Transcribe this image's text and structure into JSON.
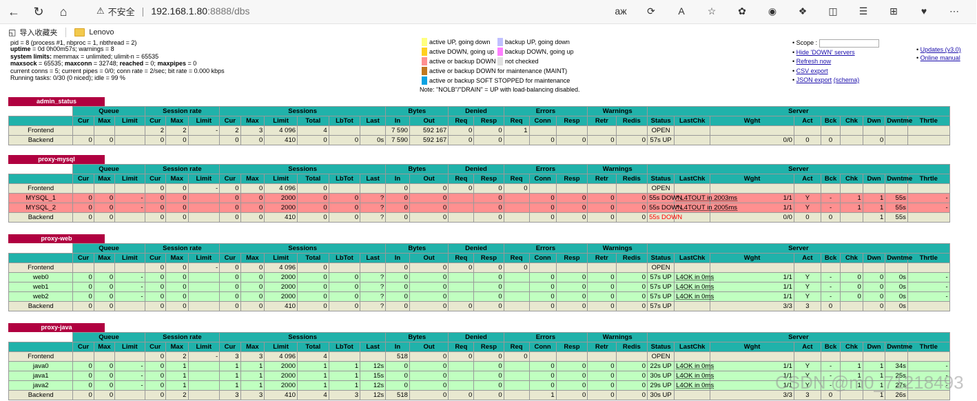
{
  "browser": {
    "insecure_label": "不安全",
    "url_host": "192.168.1.80",
    "url_path": ":8888/dbs",
    "bookmarks": [
      {
        "label": "导入收藏夹"
      },
      {
        "label": "Lenovo"
      }
    ]
  },
  "info": {
    "line0": "pid = 8 (process #1, nbproc = 1, nbthread = 2)",
    "uptime_label": "uptime",
    "uptime_value": " = 0d 0h00m57s; warnings = 8",
    "syslim_label": "system limits:",
    "syslim_value": " memmax = unlimited; ulimit-n = 65535",
    "maxsock_label": "maxsock",
    "maxsock_value": " = 65535; ",
    "maxconn_label": "maxconn",
    "maxconn_value": " = 32748; ",
    "reached_label": "reached",
    "reached_value": " = 0; ",
    "maxpipes_label": "maxpipes",
    "maxpipes_value": " = 0",
    "line4": "current conns = 5; current pipes = 0/0; conn rate = 2/sec; bit rate = 0.000 kbps",
    "line5": "Running tasks: 0/30 (0 niced); idle = 99 %"
  },
  "legend": {
    "rows": [
      {
        "l": "active UP, going down",
        "lc": "#ffff80",
        "r": "backup UP, going down",
        "rc": "#c0c0ff"
      },
      {
        "l": "active DOWN, going up",
        "lc": "#ffd020",
        "r": "backup DOWN, going up",
        "rc": "#ff80ff"
      },
      {
        "l": "active or backup DOWN",
        "lc": "#ff9090",
        "r": "not checked",
        "rc": "#e0e0e0"
      },
      {
        "l": "active or backup DOWN for maintenance (MAINT)",
        "lc": "#c07820",
        "r": "",
        "rc": ""
      },
      {
        "l": "active or backup SOFT STOPPED for maintenance",
        "lc": "#0aa2e2",
        "r": "",
        "rc": ""
      }
    ],
    "note": "Note: \"NOLB\"/\"DRAIN\" = UP with load-balancing disabled."
  },
  "links": {
    "scope_label": "Scope :",
    "items": [
      "Hide 'DOWN' servers",
      "Refresh now",
      "CSV export"
    ],
    "json_label": "JSON export",
    "schema_label": "(schema)",
    "updates": "Updates (v3.0)",
    "manual": "Online manual"
  },
  "headers": {
    "groups": [
      "Queue",
      "Session rate",
      "Sessions",
      "Bytes",
      "Denied",
      "Errors",
      "Warnings",
      "Server"
    ],
    "cols": [
      "Cur",
      "Max",
      "Limit",
      "Cur",
      "Max",
      "Limit",
      "Cur",
      "Max",
      "Limit",
      "Total",
      "LbTot",
      "Last",
      "In",
      "Out",
      "Req",
      "Resp",
      "Req",
      "Conn",
      "Resp",
      "Retr",
      "Redis",
      "Status",
      "LastChk",
      "Wght",
      "Act",
      "Bck",
      "Chk",
      "Dwn",
      "Dwntme",
      "Thrtle"
    ]
  },
  "proxies": [
    {
      "name": "admin_status",
      "rows": [
        {
          "type": "fe",
          "cells": [
            "Frontend",
            "",
            "",
            "",
            "2",
            "2",
            "-",
            "2",
            "3",
            "4 096",
            "4",
            "",
            "",
            "7 590",
            "592 167",
            "0",
            "0",
            "1",
            "",
            "",
            "",
            "",
            "OPEN",
            "",
            "",
            "",
            "",
            "",
            "",
            "",
            ""
          ]
        },
        {
          "type": "be",
          "cells": [
            "Backend",
            "0",
            "0",
            "",
            "0",
            "0",
            "",
            "0",
            "0",
            "410",
            "0",
            "0",
            "0s",
            "7 590",
            "592 167",
            "0",
            "0",
            "",
            "0",
            "0",
            "0",
            "0",
            "57s UP",
            "",
            "0/0",
            "0",
            "0",
            "",
            "0",
            "",
            ""
          ]
        }
      ]
    },
    {
      "name": "proxy-mysql",
      "rows": [
        {
          "type": "fe",
          "cells": [
            "Frontend",
            "",
            "",
            "",
            "0",
            "0",
            "-",
            "0",
            "0",
            "4 096",
            "0",
            "",
            "",
            "0",
            "0",
            "0",
            "0",
            "0",
            "",
            "",
            "",
            "",
            "OPEN",
            "",
            "",
            "",
            "",
            "",
            "",
            "",
            ""
          ]
        },
        {
          "type": "down",
          "cells": [
            "MYSQL_1",
            "0",
            "0",
            "-",
            "0",
            "0",
            "",
            "0",
            "0",
            "2000",
            "0",
            "0",
            "?",
            "0",
            "0",
            "",
            "0",
            "",
            "0",
            "0",
            "0",
            "0",
            "55s DOWN",
            "* L4TOUT in 2003ms",
            "1/1",
            "Y",
            "-",
            "1",
            "1",
            "55s",
            "-"
          ]
        },
        {
          "type": "down",
          "cells": [
            "MYSQL_2",
            "0",
            "0",
            "-",
            "0",
            "0",
            "",
            "0",
            "0",
            "2000",
            "0",
            "0",
            "?",
            "0",
            "0",
            "",
            "0",
            "",
            "0",
            "0",
            "0",
            "0",
            "55s DOWN",
            "* L4TOUT in 2005ms",
            "1/1",
            "Y",
            "-",
            "1",
            "1",
            "55s",
            "-"
          ]
        },
        {
          "type": "be",
          "cells": [
            "Backend",
            "0",
            "0",
            "",
            "0",
            "0",
            "",
            "0",
            "0",
            "410",
            "0",
            "0",
            "?",
            "0",
            "0",
            "",
            "0",
            "",
            "0",
            "0",
            "0",
            "0",
            "55s DOWN",
            "",
            "0/0",
            "0",
            "0",
            "",
            "1",
            "55s",
            ""
          ]
        }
      ]
    },
    {
      "name": "proxy-web",
      "rows": [
        {
          "type": "fe",
          "cells": [
            "Frontend",
            "",
            "",
            "",
            "0",
            "0",
            "-",
            "0",
            "0",
            "4 096",
            "0",
            "",
            "",
            "0",
            "0",
            "0",
            "0",
            "0",
            "",
            "",
            "",
            "",
            "OPEN",
            "",
            "",
            "",
            "",
            "",
            "",
            "",
            ""
          ]
        },
        {
          "type": "up",
          "cells": [
            "web0",
            "0",
            "0",
            "-",
            "0",
            "0",
            "",
            "0",
            "0",
            "2000",
            "0",
            "0",
            "?",
            "0",
            "0",
            "",
            "0",
            "",
            "0",
            "0",
            "0",
            "0",
            "57s UP",
            "L4OK in 0ms",
            "1/1",
            "Y",
            "-",
            "0",
            "0",
            "0s",
            "-"
          ]
        },
        {
          "type": "up",
          "cells": [
            "web1",
            "0",
            "0",
            "-",
            "0",
            "0",
            "",
            "0",
            "0",
            "2000",
            "0",
            "0",
            "?",
            "0",
            "0",
            "",
            "0",
            "",
            "0",
            "0",
            "0",
            "0",
            "57s UP",
            "L4OK in 0ms",
            "1/1",
            "Y",
            "-",
            "0",
            "0",
            "0s",
            "-"
          ]
        },
        {
          "type": "up",
          "cells": [
            "web2",
            "0",
            "0",
            "-",
            "0",
            "0",
            "",
            "0",
            "0",
            "2000",
            "0",
            "0",
            "?",
            "0",
            "0",
            "",
            "0",
            "",
            "0",
            "0",
            "0",
            "0",
            "57s UP",
            "L4OK in 0ms",
            "1/1",
            "Y",
            "-",
            "0",
            "0",
            "0s",
            "-"
          ]
        },
        {
          "type": "be",
          "cells": [
            "Backend",
            "0",
            "0",
            "",
            "0",
            "0",
            "",
            "0",
            "0",
            "410",
            "0",
            "0",
            "?",
            "0",
            "0",
            "0",
            "0",
            "",
            "0",
            "0",
            "0",
            "0",
            "57s UP",
            "",
            "3/3",
            "3",
            "0",
            "",
            "0",
            "0s",
            ""
          ]
        }
      ]
    },
    {
      "name": "proxy-java",
      "rows": [
        {
          "type": "fe",
          "cells": [
            "Frontend",
            "",
            "",
            "",
            "0",
            "2",
            "-",
            "3",
            "3",
            "4 096",
            "4",
            "",
            "",
            "518",
            "0",
            "0",
            "0",
            "0",
            "",
            "",
            "",
            "",
            "OPEN",
            "",
            "",
            "",
            "",
            "",
            "",
            "",
            ""
          ]
        },
        {
          "type": "up",
          "cells": [
            "java0",
            "0",
            "0",
            "-",
            "0",
            "1",
            "",
            "1",
            "1",
            "2000",
            "1",
            "1",
            "12s",
            "0",
            "0",
            "",
            "0",
            "",
            "0",
            "0",
            "0",
            "0",
            "22s UP",
            "L4OK in 0ms",
            "1/1",
            "Y",
            "-",
            "1",
            "1",
            "34s",
            "-"
          ]
        },
        {
          "type": "up",
          "cells": [
            "java1",
            "0",
            "0",
            "-",
            "0",
            "1",
            "",
            "1",
            "1",
            "2000",
            "1",
            "1",
            "15s",
            "0",
            "0",
            "",
            "0",
            "",
            "0",
            "0",
            "0",
            "0",
            "30s UP",
            "L4OK in 0ms",
            "1/1",
            "Y",
            "-",
            "1",
            "1",
            "25s",
            "-"
          ]
        },
        {
          "type": "up",
          "cells": [
            "java2",
            "0",
            "0",
            "-",
            "0",
            "1",
            "",
            "1",
            "1",
            "2000",
            "1",
            "1",
            "12s",
            "0",
            "0",
            "",
            "0",
            "",
            "0",
            "0",
            "0",
            "0",
            "29s UP",
            "L4OK in 0ms",
            "1/1",
            "Y",
            "-",
            "1",
            "1",
            "27s",
            "-"
          ]
        },
        {
          "type": "be",
          "cells": [
            "Backend",
            "0",
            "0",
            "",
            "0",
            "2",
            "",
            "3",
            "3",
            "410",
            "4",
            "3",
            "12s",
            "518",
            "0",
            "0",
            "0",
            "",
            "1",
            "0",
            "0",
            "0",
            "30s UP",
            "",
            "3/3",
            "3",
            "0",
            "",
            "1",
            "26s",
            ""
          ]
        }
      ]
    }
  ],
  "watermark": "CSDN @m0_71218493"
}
